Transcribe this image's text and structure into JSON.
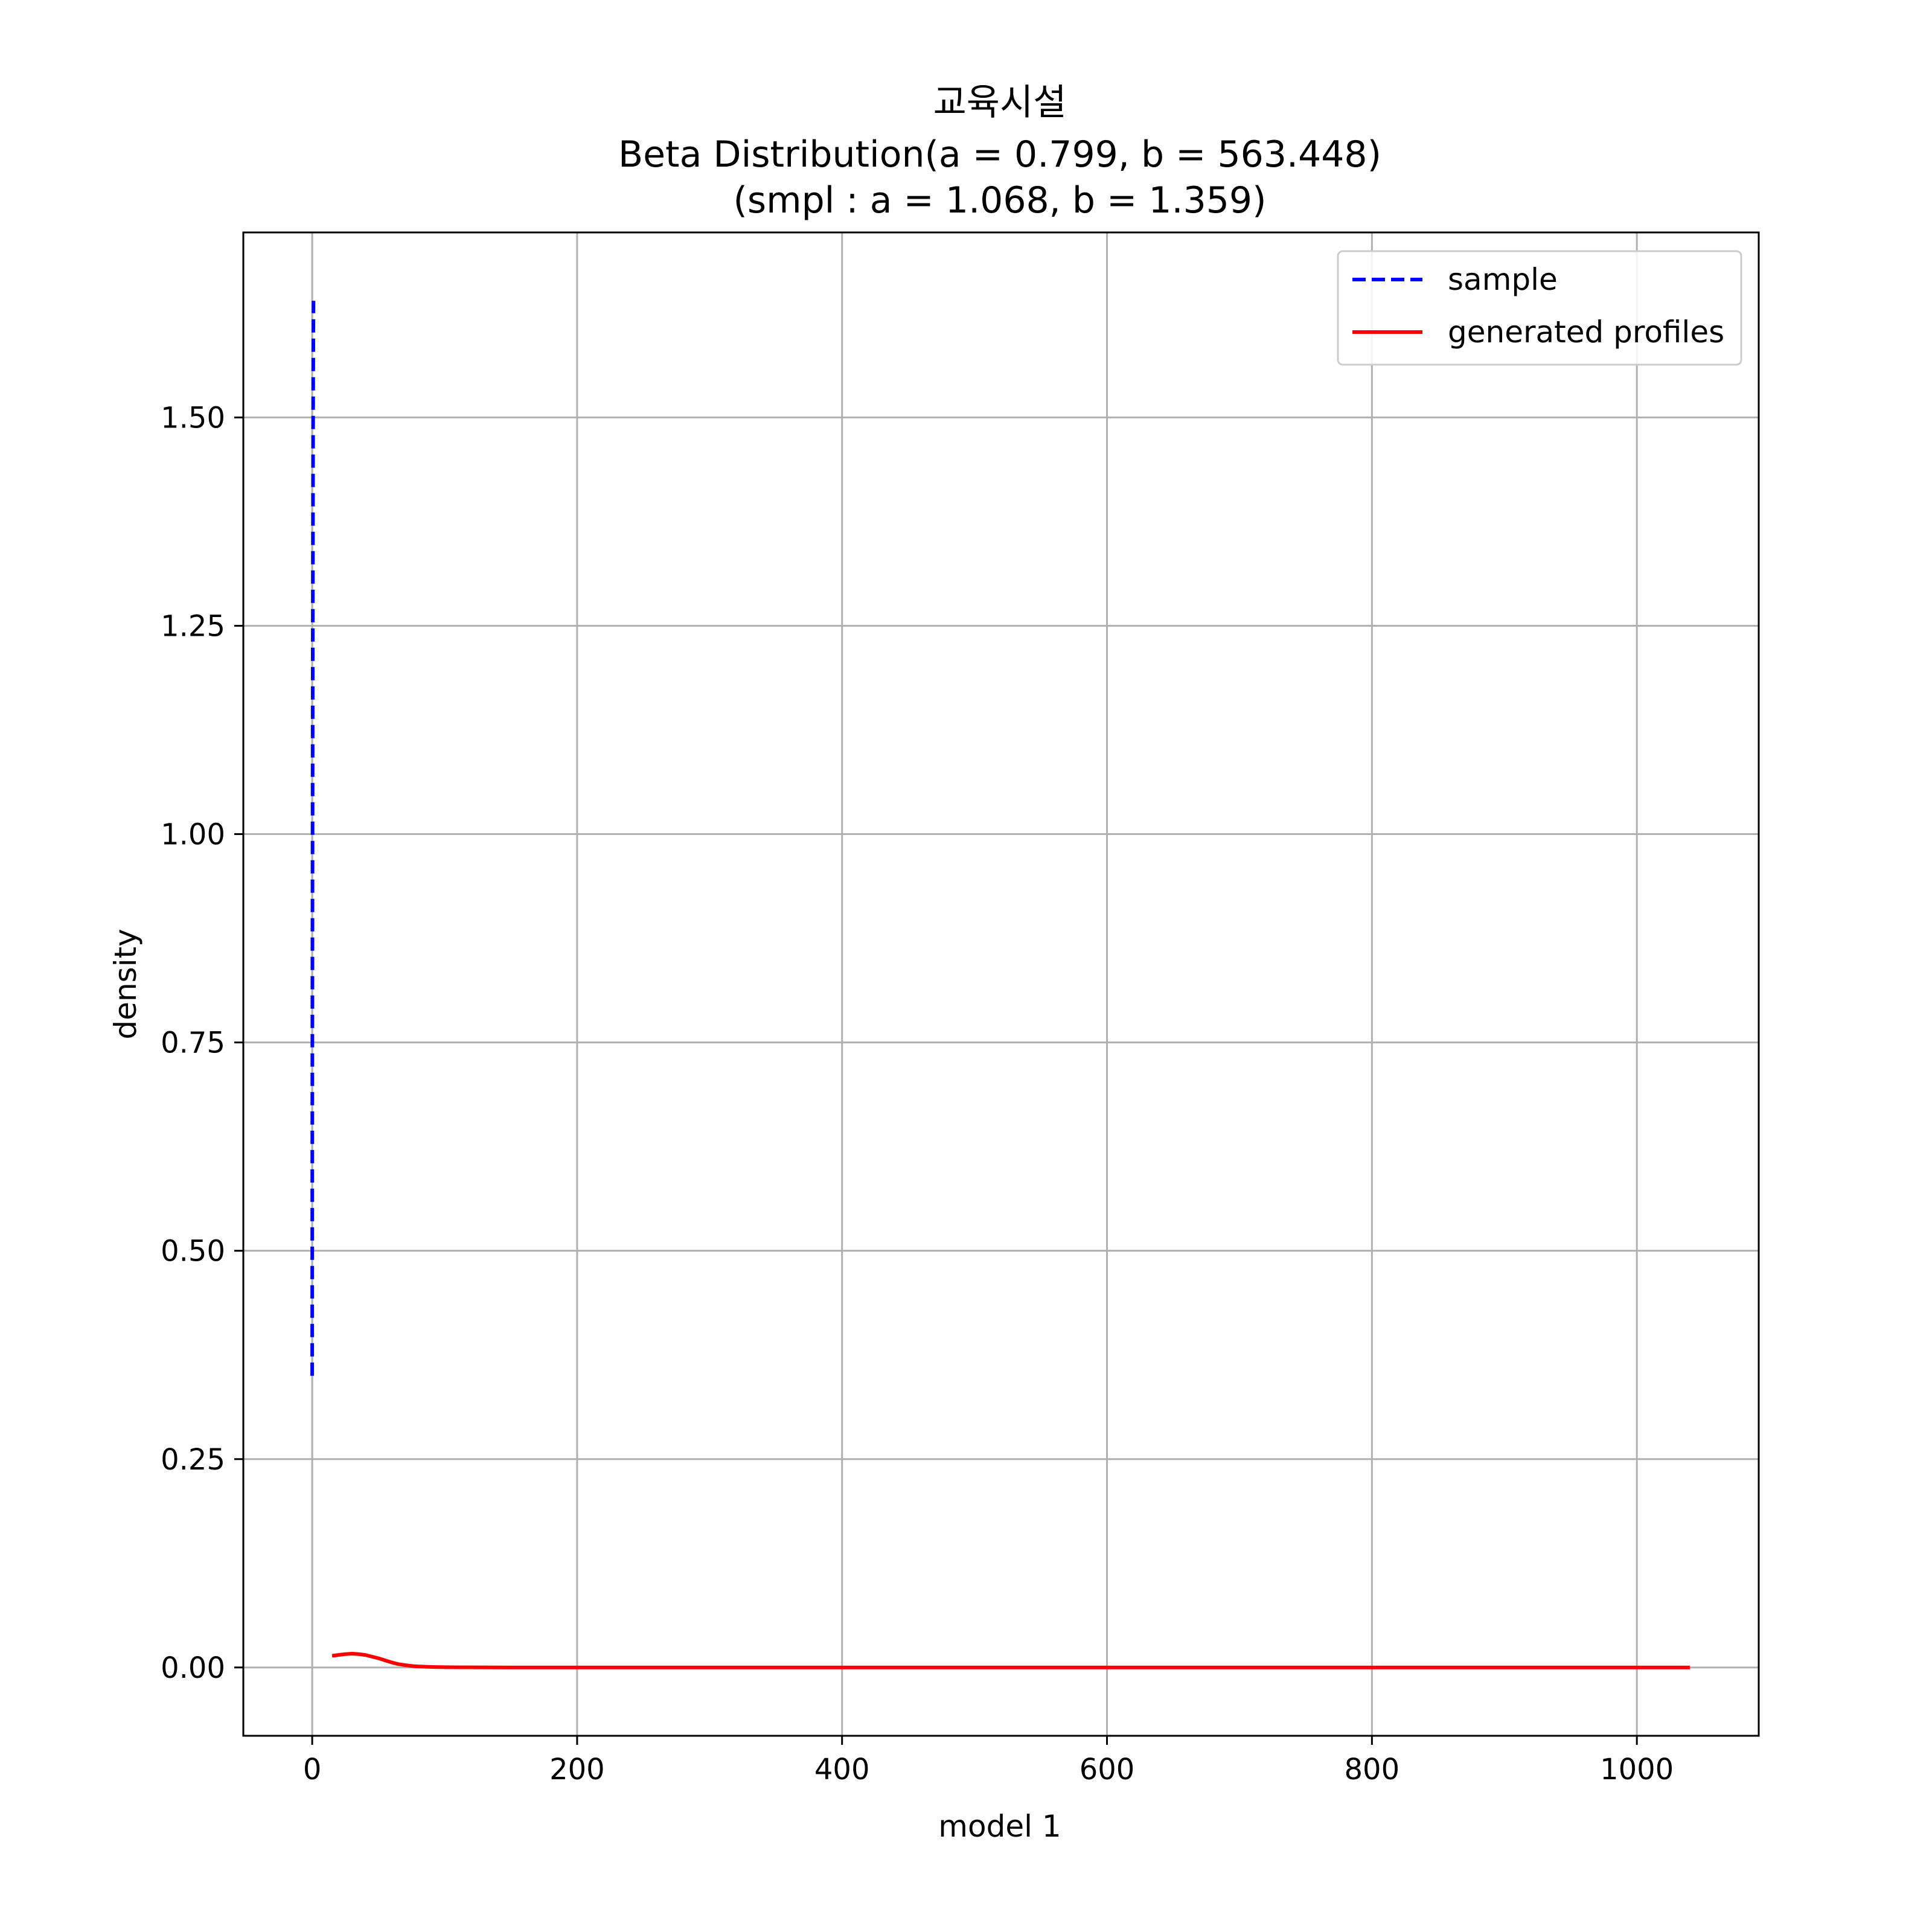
{
  "chart_data": {
    "type": "line",
    "title": "교육시설",
    "subtitle_lines": [
      "Beta Distribution(a = 0.799, b = 563.448)",
      "(smpl : a = 1.068, b = 1.359)"
    ],
    "xlabel": "model 1",
    "ylabel": "density",
    "xlim": [
      -52,
      1092
    ],
    "ylim": [
      -0.082,
      1.722
    ],
    "xticks": [
      0,
      200,
      400,
      600,
      800,
      1000
    ],
    "xtick_labels": [
      "0",
      "200",
      "400",
      "600",
      "800",
      "1000"
    ],
    "yticks": [
      0.0,
      0.25,
      0.5,
      0.75,
      1.0,
      1.25,
      1.5
    ],
    "ytick_labels": [
      "0.00",
      "0.25",
      "0.50",
      "0.75",
      "1.00",
      "1.25",
      "1.50"
    ],
    "grid": true,
    "legend_position": "top-right",
    "series": [
      {
        "name": "sample",
        "color": "#0000ff",
        "dash": "dashed",
        "x": [
          0,
          0.1,
          0.2,
          0.3,
          0.4,
          0.5,
          0.6,
          0.7,
          0.8,
          0.9,
          1.0
        ],
        "y": [
          0.35,
          0.7,
          0.9,
          1.05,
          1.2,
          1.32,
          1.42,
          1.5,
          1.56,
          1.61,
          1.64
        ]
      },
      {
        "name": "generated profiles",
        "color": "#ff0000",
        "dash": "solid",
        "x": [
          15,
          20,
          25,
          30,
          35,
          40,
          45,
          50,
          55,
          60,
          65,
          70,
          75,
          80,
          90,
          100,
          120,
          150,
          200,
          300,
          400,
          500,
          600,
          700,
          800,
          900,
          1000,
          1040
        ],
        "y": [
          0.014,
          0.015,
          0.016,
          0.0165,
          0.016,
          0.015,
          0.013,
          0.011,
          0.0085,
          0.006,
          0.004,
          0.0028,
          0.0018,
          0.0012,
          0.0006,
          0.0003,
          0.0001,
          0,
          0,
          0,
          0,
          0,
          0,
          0,
          0,
          0,
          0,
          0
        ]
      }
    ]
  }
}
